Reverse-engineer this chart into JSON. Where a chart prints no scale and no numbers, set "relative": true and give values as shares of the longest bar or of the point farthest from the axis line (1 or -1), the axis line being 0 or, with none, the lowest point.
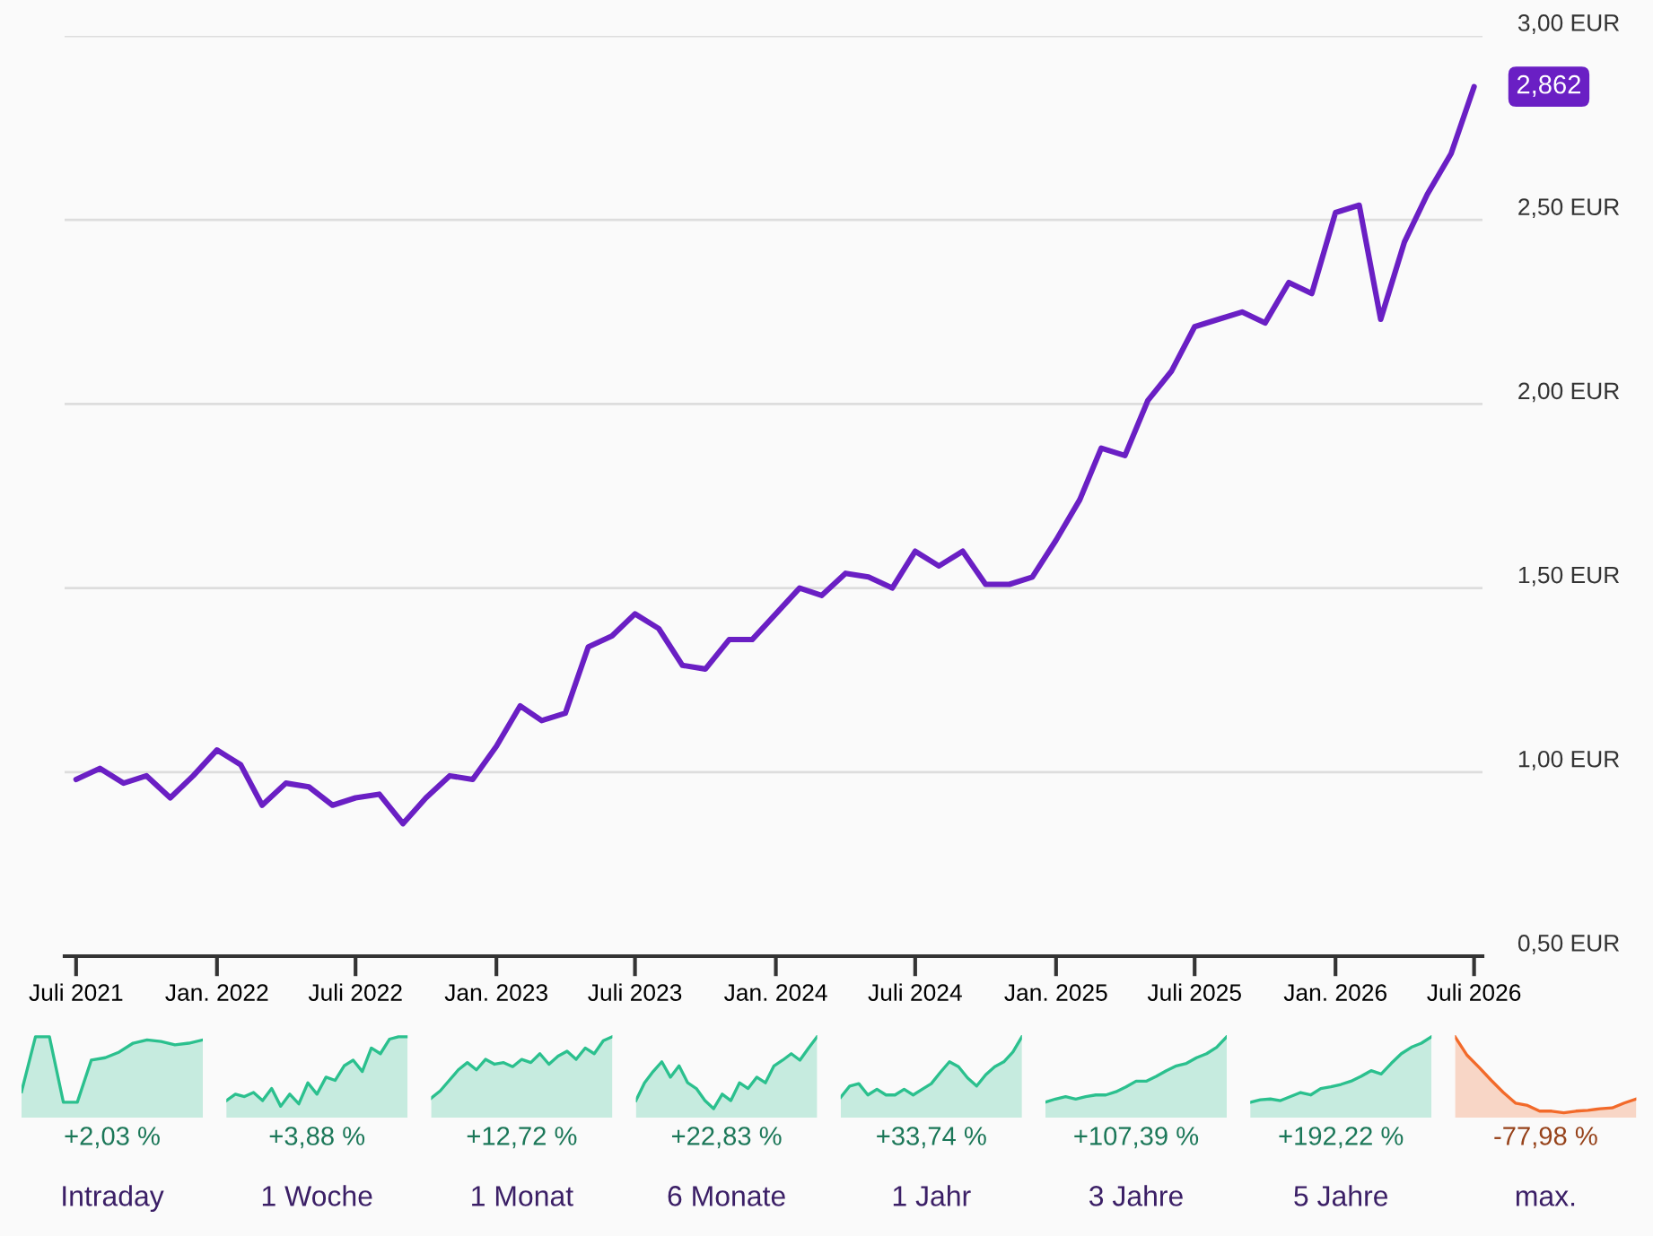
{
  "chart_data": [
    {
      "type": "line",
      "x": [
        "2021-07",
        "2021-08",
        "2021-09",
        "2021-10",
        "2021-11",
        "2021-12",
        "2022-01",
        "2022-02",
        "2022-03",
        "2022-04",
        "2022-05",
        "2022-06",
        "2022-07",
        "2022-08",
        "2022-09",
        "2022-10",
        "2022-11",
        "2022-12",
        "2023-01",
        "2023-02",
        "2023-03",
        "2023-04",
        "2023-05",
        "2023-06",
        "2023-07",
        "2023-08",
        "2023-09",
        "2023-10",
        "2023-11",
        "2023-12",
        "2024-01",
        "2024-02",
        "2024-03",
        "2024-04",
        "2024-05",
        "2024-06",
        "2024-07",
        "2024-08",
        "2024-09",
        "2024-10",
        "2024-11",
        "2024-12",
        "2025-01",
        "2025-02",
        "2025-03",
        "2025-04",
        "2025-05",
        "2025-06",
        "2025-07",
        "2025-08",
        "2025-09",
        "2025-10",
        "2025-11",
        "2025-12",
        "2026-01",
        "2026-02",
        "2026-03",
        "2026-04",
        "2026-05",
        "2026-06",
        "2026-07"
      ],
      "series": [
        {
          "color": "#6a1fc4",
          "values": [
            0.98,
            1.01,
            0.97,
            0.99,
            0.93,
            0.99,
            1.06,
            1.02,
            0.91,
            0.97,
            0.96,
            0.91,
            0.93,
            0.94,
            0.86,
            0.93,
            0.99,
            0.98,
            1.07,
            1.18,
            1.14,
            1.16,
            1.34,
            1.37,
            1.43,
            1.39,
            1.29,
            1.28,
            1.36,
            1.36,
            1.43,
            1.5,
            1.48,
            1.54,
            1.53,
            1.5,
            1.6,
            1.56,
            1.6,
            1.51,
            1.51,
            1.53,
            1.63,
            1.74,
            1.88,
            1.86,
            2.01,
            2.09,
            2.21,
            2.23,
            2.25,
            2.22,
            2.33,
            2.3,
            2.52,
            2.54,
            2.23,
            2.44,
            2.57,
            2.68,
            2.862
          ]
        }
      ],
      "xlim": [
        "2021-06-16",
        "2026-07-12"
      ],
      "xticks": [
        {
          "value": "2021-07",
          "label": "Juli 2021"
        },
        {
          "value": "2022-01",
          "label": "Jan. 2022"
        },
        {
          "value": "2022-07",
          "label": "Juli 2022"
        },
        {
          "value": "2023-01",
          "label": "Jan. 2023"
        },
        {
          "value": "2023-07",
          "label": "Juli 2023"
        },
        {
          "value": "2024-01",
          "label": "Jan. 2024"
        },
        {
          "value": "2024-07",
          "label": "Juli 2024"
        },
        {
          "value": "2025-01",
          "label": "Jan. 2025"
        },
        {
          "value": "2025-07",
          "label": "Juli 2025"
        },
        {
          "value": "2026-01",
          "label": "Jan. 2026"
        },
        {
          "value": "2026-07",
          "label": "Juli 2026"
        }
      ],
      "ylim": [
        0.5,
        3.0
      ],
      "yticks": [
        {
          "value": 0.5,
          "label": "0,50 EUR"
        },
        {
          "value": 1.0,
          "label": "1,00 EUR"
        },
        {
          "value": 1.5,
          "label": "1,50 EUR"
        },
        {
          "value": 2.0,
          "label": "2,00 EUR"
        },
        {
          "value": 2.5,
          "label": "2,50 EUR"
        },
        {
          "value": 3.0,
          "label": "3,00 EUR"
        }
      ],
      "grid": "y",
      "annotations": [
        {
          "text": "2,862",
          "x": "2026-07",
          "y": 2.862
        }
      ]
    },
    {
      "type": "area",
      "title": "Intraday",
      "relative": true,
      "annotations": [
        "+2,03 %"
      ],
      "categories": [
        null,
        null,
        null,
        null,
        null,
        null,
        null,
        null,
        null,
        null,
        null,
        null,
        null,
        null
      ],
      "series": [
        {
          "color": "#2bc08e",
          "values": [
            0.32,
            1.0,
            1.0,
            0.19,
            0.19,
            0.71,
            0.74,
            0.81,
            0.92,
            0.96,
            0.94,
            0.9,
            0.92,
            0.96
          ]
        }
      ]
    },
    {
      "type": "area",
      "title": "1 Woche",
      "relative": true,
      "annotations": [
        "+3,88 %"
      ],
      "categories": [
        null,
        null,
        null,
        null,
        null,
        null,
        null,
        null,
        null,
        null,
        null,
        null,
        null,
        null,
        null,
        null,
        null,
        null,
        null,
        null,
        null
      ],
      "series": [
        {
          "color": "#2bc08e",
          "values": [
            0.21,
            0.29,
            0.26,
            0.31,
            0.21,
            0.36,
            0.14,
            0.29,
            0.17,
            0.43,
            0.29,
            0.5,
            0.46,
            0.64,
            0.71,
            0.57,
            0.86,
            0.79,
            0.97,
            1.0,
            1.0
          ]
        }
      ]
    },
    {
      "type": "area",
      "title": "1 Monat",
      "relative": true,
      "annotations": [
        "+12,72 %"
      ],
      "categories": [
        null,
        null,
        null,
        null,
        null,
        null,
        null,
        null,
        null,
        null,
        null,
        null,
        null,
        null,
        null,
        null,
        null,
        null,
        null,
        null,
        null
      ],
      "series": [
        {
          "color": "#2bc08e",
          "values": [
            0.24,
            0.33,
            0.46,
            0.59,
            0.68,
            0.59,
            0.72,
            0.66,
            0.68,
            0.63,
            0.72,
            0.68,
            0.79,
            0.66,
            0.76,
            0.82,
            0.72,
            0.86,
            0.79,
            0.95,
            1.0
          ]
        }
      ]
    },
    {
      "type": "area",
      "title": "6 Monate",
      "relative": true,
      "annotations": [
        "+22,83 %"
      ],
      "categories": [
        null,
        null,
        null,
        null,
        null,
        null,
        null,
        null,
        null,
        null,
        null,
        null,
        null,
        null,
        null,
        null,
        null,
        null,
        null,
        null,
        null,
        null
      ],
      "series": [
        {
          "color": "#2bc08e",
          "values": [
            0.21,
            0.43,
            0.57,
            0.69,
            0.5,
            0.64,
            0.43,
            0.36,
            0.21,
            0.11,
            0.29,
            0.21,
            0.43,
            0.36,
            0.5,
            0.43,
            0.64,
            0.71,
            0.79,
            0.71,
            0.86,
            1.0
          ]
        }
      ]
    },
    {
      "type": "area",
      "title": "1 Jahr",
      "relative": true,
      "annotations": [
        "+33,74 %"
      ],
      "categories": [
        null,
        null,
        null,
        null,
        null,
        null,
        null,
        null,
        null,
        null,
        null,
        null,
        null,
        null,
        null,
        null,
        null,
        null,
        null,
        null,
        null
      ],
      "series": [
        {
          "color": "#2bc08e",
          "values": [
            0.25,
            0.39,
            0.42,
            0.28,
            0.35,
            0.28,
            0.28,
            0.35,
            0.28,
            0.35,
            0.42,
            0.56,
            0.69,
            0.63,
            0.49,
            0.39,
            0.53,
            0.63,
            0.69,
            0.81,
            1.0
          ]
        }
      ]
    },
    {
      "type": "area",
      "title": "3 Jahre",
      "relative": true,
      "annotations": [
        "+107,39 %"
      ],
      "categories": [
        null,
        null,
        null,
        null,
        null,
        null,
        null,
        null,
        null,
        null,
        null,
        null,
        null,
        null,
        null,
        null,
        null,
        null,
        null
      ],
      "series": [
        {
          "color": "#2bc08e",
          "values": [
            0.19,
            0.23,
            0.26,
            0.23,
            0.26,
            0.28,
            0.28,
            0.32,
            0.38,
            0.45,
            0.45,
            0.51,
            0.58,
            0.64,
            0.67,
            0.74,
            0.79,
            0.87,
            1.0
          ]
        }
      ]
    },
    {
      "type": "area",
      "title": "5 Jahre",
      "relative": true,
      "annotations": [
        "+192,22 %"
      ],
      "categories": [
        null,
        null,
        null,
        null,
        null,
        null,
        null,
        null,
        null,
        null,
        null,
        null,
        null,
        null,
        null,
        null,
        null,
        null,
        null
      ],
      "series": [
        {
          "color": "#2bc08e",
          "values": [
            0.19,
            0.22,
            0.23,
            0.21,
            0.26,
            0.31,
            0.28,
            0.36,
            0.38,
            0.41,
            0.45,
            0.51,
            0.58,
            0.54,
            0.67,
            0.79,
            0.87,
            0.92,
            1.0
          ]
        }
      ]
    },
    {
      "type": "area",
      "title": "max.",
      "relative": true,
      "annotations": [
        "-77,98 %"
      ],
      "categories": [
        null,
        null,
        null,
        null,
        null,
        null,
        null,
        null,
        null,
        null,
        null,
        null,
        null,
        null,
        null,
        null
      ],
      "series": [
        {
          "color": "#f26a2a",
          "values": [
            1.0,
            0.77,
            0.62,
            0.46,
            0.31,
            0.18,
            0.15,
            0.08,
            0.08,
            0.06,
            0.08,
            0.09,
            0.11,
            0.12,
            0.18,
            0.23
          ]
        }
      ]
    }
  ]
}
